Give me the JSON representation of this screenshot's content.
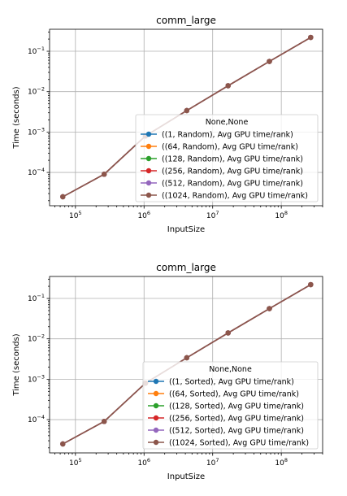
{
  "chart_data": [
    {
      "type": "line",
      "title": "comm_large",
      "xlabel": "InputSize",
      "ylabel": "Time (seconds)",
      "xscale": "log",
      "yscale": "log",
      "xlim": [
        42000,
        400000000
      ],
      "ylim": [
        1.5e-05,
        0.35
      ],
      "grid": true,
      "legend_title": "None,None",
      "legend_position": "lower right",
      "xticks": [
        100000,
        1000000,
        10000000,
        100000000
      ],
      "xtick_labels": [
        "10^5",
        "10^6",
        "10^7",
        "10^8"
      ],
      "yticks": [
        0.0001,
        0.001,
        0.01,
        0.1
      ],
      "ytick_labels": [
        "10^-4",
        "10^-3",
        "10^-2",
        "10^-1"
      ],
      "x": [
        65536,
        262144,
        1048576,
        4194304,
        16777216,
        67108864,
        268435456
      ],
      "series": [
        {
          "name": "((1, Random), Avg GPU time/rank)",
          "color": "#1f77b4",
          "values": [
            2.5e-05,
            9e-05,
            0.0008,
            0.0034,
            0.014,
            0.056,
            0.22
          ]
        },
        {
          "name": "((64, Random), Avg GPU time/rank)",
          "color": "#ff7f0e",
          "values": [
            2.5e-05,
            9e-05,
            0.0008,
            0.0034,
            0.014,
            0.056,
            0.22
          ]
        },
        {
          "name": "((128, Random), Avg GPU time/rank)",
          "color": "#2ca02c",
          "values": [
            2.5e-05,
            9e-05,
            0.0008,
            0.0034,
            0.014,
            0.056,
            0.22
          ]
        },
        {
          "name": "((256, Random), Avg GPU time/rank)",
          "color": "#d62728",
          "values": [
            2.5e-05,
            9e-05,
            0.0008,
            0.0034,
            0.014,
            0.056,
            0.22
          ]
        },
        {
          "name": "((512, Random), Avg GPU time/rank)",
          "color": "#9467bd",
          "values": [
            2.5e-05,
            9e-05,
            0.0008,
            0.0034,
            0.014,
            0.056,
            0.22
          ]
        },
        {
          "name": "((1024, Random), Avg GPU time/rank)",
          "color": "#8c564b",
          "values": [
            2.5e-05,
            9e-05,
            0.0008,
            0.0034,
            0.014,
            0.056,
            0.22
          ]
        }
      ]
    },
    {
      "type": "line",
      "title": "comm_large",
      "xlabel": "InputSize",
      "ylabel": "Time (seconds)",
      "xscale": "log",
      "yscale": "log",
      "xlim": [
        42000,
        400000000
      ],
      "ylim": [
        1.5e-05,
        0.35
      ],
      "grid": true,
      "legend_title": "None,None",
      "legend_position": "lower right",
      "xticks": [
        100000,
        1000000,
        10000000,
        100000000
      ],
      "xtick_labels": [
        "10^5",
        "10^6",
        "10^7",
        "10^8"
      ],
      "yticks": [
        0.0001,
        0.001,
        0.01,
        0.1
      ],
      "ytick_labels": [
        "10^-4",
        "10^-3",
        "10^-2",
        "10^-1"
      ],
      "x": [
        65536,
        262144,
        1048576,
        4194304,
        16777216,
        67108864,
        268435456
      ],
      "series": [
        {
          "name": "((1, Sorted), Avg GPU time/rank)",
          "color": "#1f77b4",
          "values": [
            2.5e-05,
            9e-05,
            0.0008,
            0.0034,
            0.014,
            0.056,
            0.22
          ]
        },
        {
          "name": "((64, Sorted), Avg GPU time/rank)",
          "color": "#ff7f0e",
          "values": [
            2.5e-05,
            9e-05,
            0.0008,
            0.0034,
            0.014,
            0.056,
            0.22
          ]
        },
        {
          "name": "((128, Sorted), Avg GPU time/rank)",
          "color": "#2ca02c",
          "values": [
            2.5e-05,
            9e-05,
            0.0008,
            0.0034,
            0.014,
            0.056,
            0.22
          ]
        },
        {
          "name": "((256, Sorted), Avg GPU time/rank)",
          "color": "#d62728",
          "values": [
            2.5e-05,
            9e-05,
            0.0008,
            0.0034,
            0.014,
            0.056,
            0.22
          ]
        },
        {
          "name": "((512, Sorted), Avg GPU time/rank)",
          "color": "#9467bd",
          "values": [
            2.5e-05,
            9e-05,
            0.0008,
            0.0034,
            0.014,
            0.056,
            0.22
          ]
        },
        {
          "name": "((1024, Sorted), Avg GPU time/rank)",
          "color": "#8c564b",
          "values": [
            2.5e-05,
            9e-05,
            0.0008,
            0.0034,
            0.014,
            0.056,
            0.22
          ]
        }
      ]
    }
  ]
}
